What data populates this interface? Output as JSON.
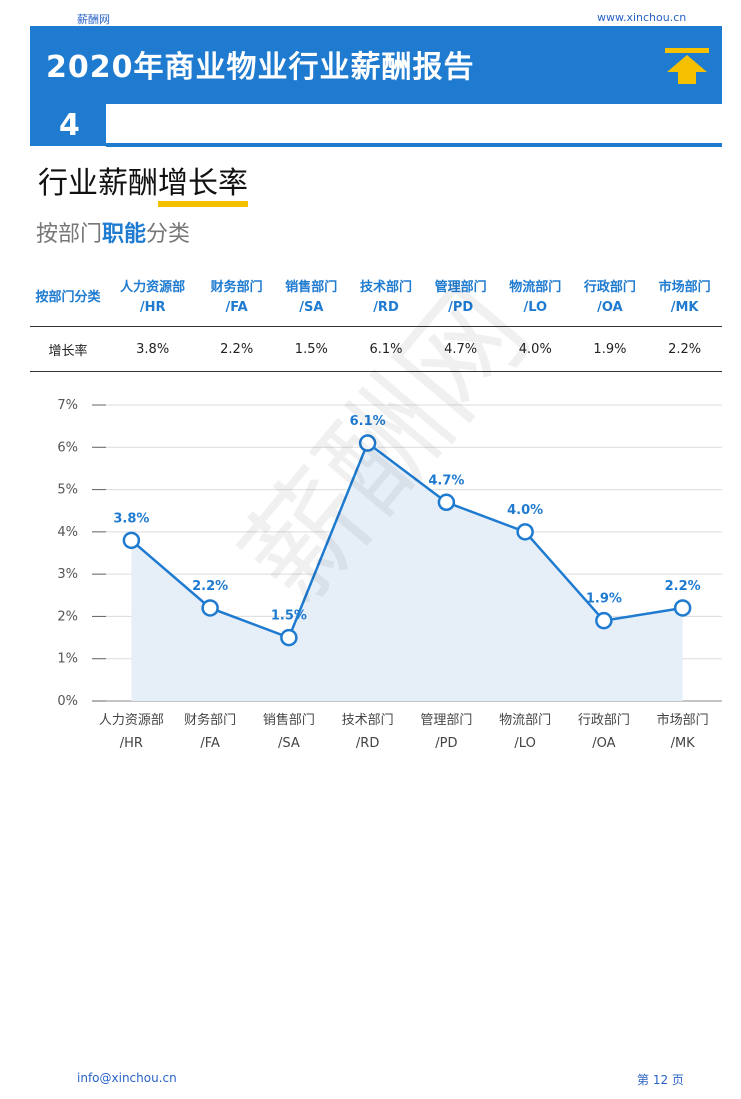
{
  "header": {
    "site_name": "薪酬网",
    "site_url": "www.xinchou.cn",
    "report_title": "2020年商业物业行业薪酬报告",
    "chapter_number": "4"
  },
  "section": {
    "title_plain": "行业薪酬",
    "title_highlight": "增长率",
    "subtitle_pre": "按部门",
    "subtitle_bold": "职能",
    "subtitle_post": "分类"
  },
  "table": {
    "corner_header": "按部门分类",
    "columns": [
      {
        "line1": "人力资源部",
        "line2": "/HR"
      },
      {
        "line1": "财务部门",
        "line2": "/FA"
      },
      {
        "line1": "销售部门",
        "line2": "/SA"
      },
      {
        "line1": "技术部门",
        "line2": "/RD"
      },
      {
        "line1": "管理部门",
        "line2": "/PD"
      },
      {
        "line1": "物流部门",
        "line2": "/LO"
      },
      {
        "line1": "行政部门",
        "line2": "/OA"
      },
      {
        "line1": "市场部门",
        "line2": "/MK"
      }
    ],
    "row_label": "增长率",
    "row_values": [
      "3.8%",
      "2.2%",
      "1.5%",
      "6.1%",
      "4.7%",
      "4.0%",
      "1.9%",
      "2.2%"
    ]
  },
  "chart_data": {
    "type": "line",
    "categories": [
      "人力资源部/HR",
      "财务部门/FA",
      "销售部门/SA",
      "技术部门/RD",
      "管理部门/PD",
      "物流部门/LO",
      "行政部门/OA",
      "市场部门/MK"
    ],
    "category_lines": [
      [
        "人力资源部",
        "/HR"
      ],
      [
        "财务部门",
        "/FA"
      ],
      [
        "销售部门",
        "/SA"
      ],
      [
        "技术部门",
        "/RD"
      ],
      [
        "管理部门",
        "/PD"
      ],
      [
        "物流部门",
        "/LO"
      ],
      [
        "行政部门",
        "/OA"
      ],
      [
        "市场部门",
        "/MK"
      ]
    ],
    "values": [
      3.8,
      2.2,
      1.5,
      6.1,
      4.7,
      4.0,
      1.9,
      2.2
    ],
    "value_labels": [
      "3.8%",
      "2.2%",
      "1.5%",
      "6.1%",
      "4.7%",
      "4.0%",
      "1.9%",
      "2.2%"
    ],
    "y_ticks": [
      "0%",
      "1%",
      "2%",
      "3%",
      "4%",
      "5%",
      "6%",
      "7%"
    ],
    "ylim": [
      0,
      7
    ],
    "grid": true,
    "area_fill": true,
    "line_color": "#1f7bd0",
    "fill_color": "#e6eff8",
    "label_color": "#1f7bd0"
  },
  "watermark": "薪酬网",
  "footer": {
    "email": "info@xinchou.cn",
    "page": "第 12 页"
  },
  "colors": {
    "brand_blue": "#1f7bd0",
    "highlight_yellow": "#f5c000"
  }
}
